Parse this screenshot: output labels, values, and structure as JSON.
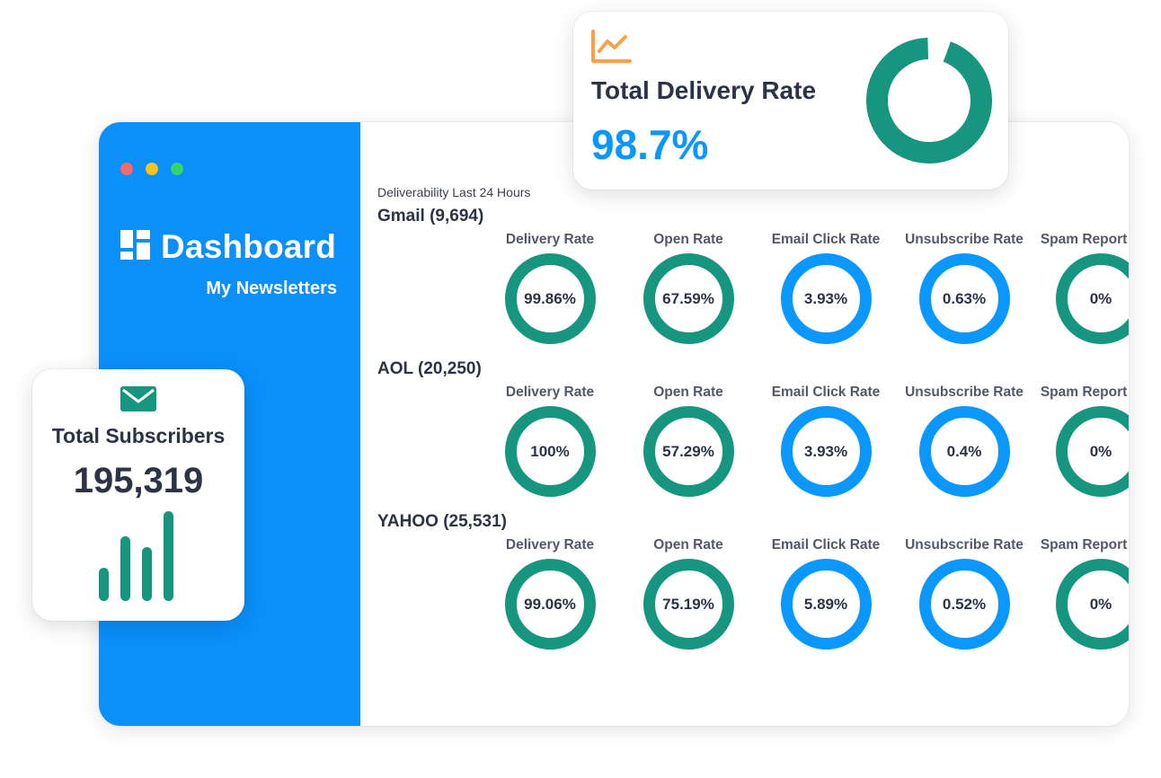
{
  "window": {
    "dots": [
      "#f76a6a",
      "#f8c31a",
      "#37d36b"
    ]
  },
  "sidebar": {
    "brand_icon": "dashboard-grid-icon",
    "title": "Dashboard",
    "nav_item": "My Newsletters"
  },
  "content": {
    "caption": "Deliverability Last 24 Hours",
    "providers": [
      {
        "title": "Gmail (9,694)",
        "metrics": [
          {
            "label": "Delivery Rate",
            "value": "99.86%",
            "color": "green"
          },
          {
            "label": "Open Rate",
            "value": "67.59%",
            "color": "green"
          },
          {
            "label": "Email Click Rate",
            "value": "3.93%",
            "color": "blue"
          },
          {
            "label": "Unsubscribe Rate",
            "value": "0.63%",
            "color": "blue"
          },
          {
            "label": "Spam Report Rate",
            "value": "0%",
            "color": "green"
          }
        ]
      },
      {
        "title": "AOL (20,250)",
        "metrics": [
          {
            "label": "Delivery Rate",
            "value": "100%",
            "color": "green"
          },
          {
            "label": "Open Rate",
            "value": "57.29%",
            "color": "green"
          },
          {
            "label": "Email Click Rate",
            "value": "3.93%",
            "color": "blue"
          },
          {
            "label": "Unsubscribe Rate",
            "value": "0.4%",
            "color": "blue"
          },
          {
            "label": "Spam Report Rate",
            "value": "0%",
            "color": "green"
          }
        ]
      },
      {
        "title": "YAHOO (25,531)",
        "metrics": [
          {
            "label": "Delivery Rate",
            "value": "99.06%",
            "color": "green"
          },
          {
            "label": "Open Rate",
            "value": "75.19%",
            "color": "green"
          },
          {
            "label": "Email Click Rate",
            "value": "5.89%",
            "color": "blue"
          },
          {
            "label": "Unsubscribe Rate",
            "value": "0.52%",
            "color": "blue"
          },
          {
            "label": "Spam Report Rate",
            "value": "0%",
            "color": "green"
          }
        ]
      }
    ]
  },
  "delivery_card": {
    "icon": "line-chart-icon",
    "title": "Total Delivery Rate",
    "value": "98.7%",
    "donut_fraction": 0.987
  },
  "subscribers_card": {
    "icon": "mail-icon",
    "title": "Total Subscribers",
    "value": "195,319",
    "bars_relative": [
      0.37,
      0.72,
      0.6,
      1.0
    ]
  },
  "colors": {
    "sidebar_blue": "#0a8ffb",
    "ring_green": "#16957f",
    "ring_blue": "#0a97ff",
    "accent_orange": "#f6a24a",
    "text_dark": "#2c3346"
  }
}
